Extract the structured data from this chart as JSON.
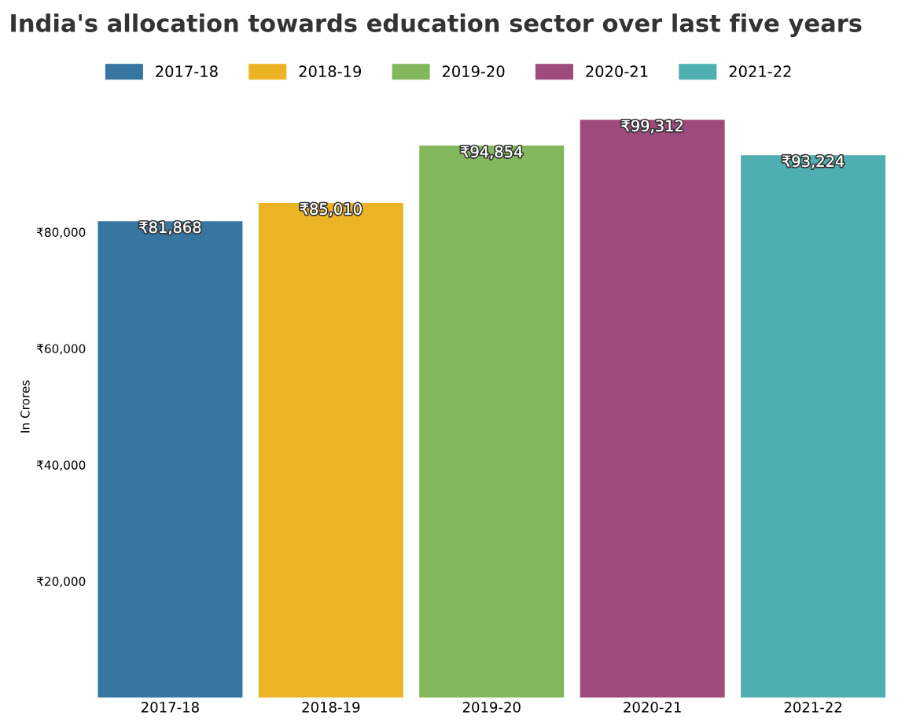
{
  "chart_data": {
    "type": "bar",
    "title": "India's allocation towards education sector over last five years",
    "ylabel": "In Crores",
    "categories": [
      "2017-18",
      "2018-19",
      "2019-20",
      "2020-21",
      "2021-22"
    ],
    "series": [
      {
        "name": "2017-18",
        "color": "#3776a1",
        "values": [
          81868,
          null,
          null,
          null,
          null
        ]
      },
      {
        "name": "2018-19",
        "color": "#ecb424",
        "values": [
          null,
          85010,
          null,
          null,
          null
        ]
      },
      {
        "name": "2019-20",
        "color": "#82b75c",
        "values": [
          null,
          null,
          94854,
          null,
          null
        ]
      },
      {
        "name": "2020-21",
        "color": "#9e4a7c",
        "values": [
          null,
          null,
          null,
          99312,
          null
        ]
      },
      {
        "name": "2021-22",
        "color": "#4fafb0",
        "values": [
          null,
          null,
          null,
          null,
          93224
        ]
      }
    ],
    "value_labels": [
      "₹81,868",
      "₹85,010",
      "₹94,854",
      "₹99,312",
      "₹93,224"
    ],
    "ylim": [
      0,
      100000
    ],
    "yticks": [
      {
        "value": 20000,
        "label": "₹20,000"
      },
      {
        "value": 40000,
        "label": "₹40,000"
      },
      {
        "value": 60000,
        "label": "₹60,000"
      },
      {
        "value": 80000,
        "label": "₹80,000"
      }
    ],
    "grid": false,
    "legend": "top"
  }
}
